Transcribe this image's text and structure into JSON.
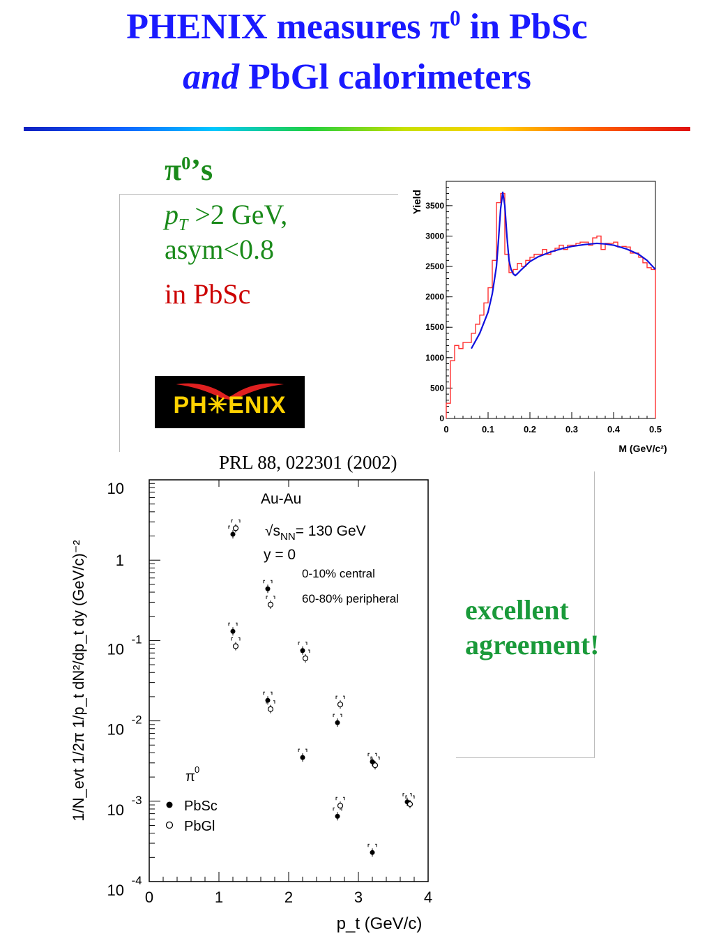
{
  "slide": {
    "title_line1": "PHENIX measures π",
    "title_sup": "0",
    "title_line1_end": " in PbSc",
    "title_line2_italic": "and",
    "title_line2_rest": " PbGl calorimeters",
    "pi_label_main": "π",
    "pi_label_sup": "0",
    "pi_label_end": "’s",
    "cut_pt_symbol": "p",
    "cut_pt_sub": "T",
    "cut_pt_rest": " >2 GeV,",
    "cut_asym": "asym<0.8",
    "cut_detector": "in PbSc",
    "logo_text": "PH✳ENIX",
    "reference": "PRL 88, 022301 (2002)",
    "conclusion_line1": "excellent",
    "conclusion_line2": "agreement!"
  },
  "colors": {
    "title": "#1a1aff",
    "green_text": "#1a8a1a",
    "red_text": "#cc0000",
    "hist_red": "#ff3030",
    "fit_blue": "#1010dd",
    "conclusion": "#1a9a3a"
  },
  "chart_data": [
    {
      "type": "line",
      "title": "",
      "xlabel": "M (GeV/c²)",
      "ylabel": "Yield",
      "xlim": [
        0,
        0.5
      ],
      "ylim": [
        0,
        3900
      ],
      "xticks": [
        0,
        0.1,
        0.2,
        0.3,
        0.4,
        0.5
      ],
      "xtick_labels": [
        "0",
        "0.1",
        "0.2",
        "0.3",
        "0.4",
        "0.5"
      ],
      "yticks": [
        0,
        500,
        1000,
        1500,
        2000,
        2500,
        3000,
        3500
      ],
      "ytick_labels": [
        "0",
        "500",
        "1000",
        "1500",
        "2000",
        "2500",
        "3000",
        "3500"
      ],
      "series": [
        {
          "kind": "histogram",
          "color": "#ff3030",
          "bin_width": 0.01,
          "x": [
            0.0,
            0.01,
            0.02,
            0.03,
            0.04,
            0.05,
            0.06,
            0.07,
            0.08,
            0.09,
            0.1,
            0.11,
            0.12,
            0.13,
            0.14,
            0.15,
            0.16,
            0.17,
            0.18,
            0.19,
            0.2,
            0.21,
            0.22,
            0.23,
            0.24,
            0.25,
            0.26,
            0.27,
            0.28,
            0.29,
            0.3,
            0.31,
            0.32,
            0.33,
            0.34,
            0.35,
            0.36,
            0.37,
            0.38,
            0.39,
            0.4,
            0.41,
            0.42,
            0.43,
            0.44,
            0.45,
            0.46,
            0.47,
            0.48,
            0.49
          ],
          "values": [
            250,
            950,
            1200,
            1150,
            1250,
            1250,
            1400,
            1550,
            1700,
            1900,
            2150,
            2600,
            3550,
            3700,
            2700,
            2400,
            2450,
            2550,
            2500,
            2600,
            2650,
            2700,
            2700,
            2780,
            2700,
            2750,
            2800,
            2850,
            2780,
            2850,
            2850,
            2880,
            2900,
            2900,
            2850,
            2970,
            3000,
            2780,
            2880,
            2880,
            2900,
            2820,
            2830,
            2820,
            2720,
            2720,
            2650,
            2560,
            2480,
            2450
          ]
        },
        {
          "kind": "fit",
          "color": "#1010dd",
          "x": [
            0.06,
            0.08,
            0.1,
            0.11,
            0.12,
            0.125,
            0.13,
            0.135,
            0.14,
            0.145,
            0.15,
            0.155,
            0.16,
            0.165,
            0.17,
            0.18,
            0.2,
            0.22,
            0.25,
            0.28,
            0.3,
            0.33,
            0.36,
            0.38,
            0.4,
            0.43,
            0.46,
            0.48,
            0.5
          ],
          "values": [
            1150,
            1400,
            1750,
            2050,
            2500,
            2950,
            3450,
            3720,
            3500,
            3000,
            2600,
            2450,
            2380,
            2350,
            2380,
            2450,
            2580,
            2660,
            2740,
            2800,
            2830,
            2860,
            2880,
            2870,
            2850,
            2790,
            2700,
            2600,
            2450
          ]
        }
      ]
    },
    {
      "type": "scatter",
      "title": "",
      "xlabel": "p_t (GeV/c)",
      "ylabel": "1/N_evt 1/2π 1/p_t dN²/dp_t dy (GeV/c)⁻²",
      "xlim": [
        0,
        4
      ],
      "ylim_log10": [
        -4,
        1
      ],
      "yscale": "log",
      "xticks": [
        0,
        1,
        2,
        3,
        4
      ],
      "xtick_labels": [
        "0",
        "1",
        "2",
        "3",
        "4"
      ],
      "ytick_labels": [
        {
          "base": "10",
          "exp": "",
          "log10": 1
        },
        {
          "base": "1",
          "exp": "",
          "log10": 0
        },
        {
          "base": "10",
          "exp": "-1",
          "log10": -1
        },
        {
          "base": "10",
          "exp": "-2",
          "log10": -2
        },
        {
          "base": "10",
          "exp": "-3",
          "log10": -3
        },
        {
          "base": "10",
          "exp": "-4",
          "log10": -4
        }
      ],
      "annotations": {
        "system": "Au-Au",
        "energy_prefix": "√s",
        "energy_sub": "NN",
        "energy_rest": "= 130 GeV",
        "rapidity": "y = 0",
        "central": "0-10% central",
        "peripheral": "60-80% peripheral",
        "legend_title": "π",
        "legend_title_sup": "0"
      },
      "series": [
        {
          "name": "PbSc",
          "marker": "filled-circle",
          "x": [
            1.22,
            1.72,
            2.22,
            2.72,
            3.22,
            3.72
          ],
          "y": [
            2.1,
            0.44,
            0.075,
            0.0095,
            0.0031,
            0.00098
          ]
        },
        {
          "name": "PbGl",
          "marker": "open-circle",
          "x": [
            1.22,
            1.72,
            2.22,
            2.72,
            3.22,
            3.72
          ],
          "y": [
            2.5,
            0.28,
            0.06,
            0.016,
            0.0028,
            0.00092
          ]
        },
        {
          "name": "PbSc",
          "marker": "filled-circle",
          "x": [
            1.22,
            1.72,
            2.22,
            2.72,
            3.22
          ],
          "y": [
            0.13,
            0.018,
            0.0035,
            0.00065,
            0.00023
          ]
        },
        {
          "name": "PbGl",
          "marker": "open-circle",
          "x": [
            1.22,
            1.72,
            2.72
          ],
          "y": [
            0.085,
            0.014,
            0.00088
          ]
        }
      ]
    }
  ]
}
